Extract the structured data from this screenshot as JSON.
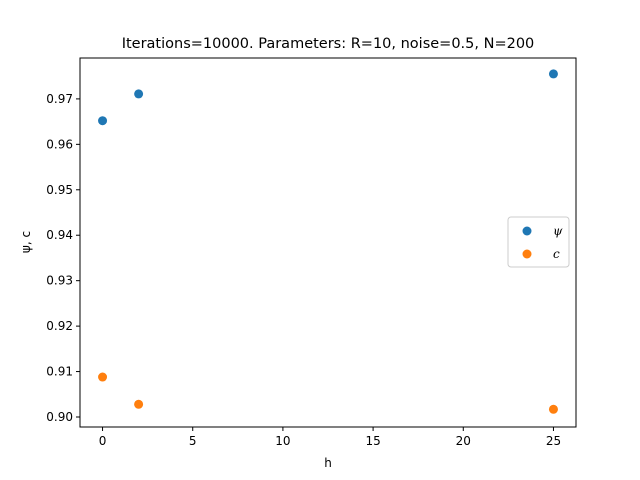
{
  "chart_data": {
    "type": "scatter",
    "title": "Iterations=10000. Parameters: R=10, noise=0.5, N=200",
    "xlabel": "h",
    "ylabel": "ψ, c",
    "xlim": [
      -1.25,
      26.25
    ],
    "ylim": [
      0.8978,
      0.979
    ],
    "xticks": [
      0,
      5,
      10,
      15,
      20,
      25
    ],
    "yticks": [
      0.9,
      0.91,
      0.92,
      0.93,
      0.94,
      0.95,
      0.96,
      0.97
    ],
    "ytick_labels": [
      "0.90",
      "0.91",
      "0.92",
      "0.93",
      "0.94",
      "0.95",
      "0.96",
      "0.97"
    ],
    "grid": false,
    "legend_placement": "center-right",
    "series": [
      {
        "name": "ψ",
        "color": "#1f77b4",
        "x": [
          0,
          2,
          25
        ],
        "y": [
          0.9652,
          0.9711,
          0.9755
        ]
      },
      {
        "name": "c",
        "color": "#ff7f0e",
        "x": [
          0,
          2,
          25
        ],
        "y": [
          0.9088,
          0.9028,
          0.9017
        ]
      }
    ]
  }
}
